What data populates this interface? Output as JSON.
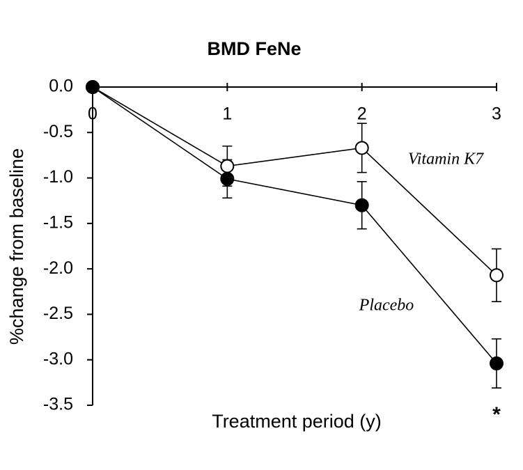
{
  "chart_data": {
    "type": "line",
    "title": "BMD FeNe",
    "x_label": "Treatment period (y)",
    "y_label": "%change from baseline",
    "x": [
      0,
      1,
      2,
      3
    ],
    "xlim": [
      0,
      3
    ],
    "xticks": [
      0,
      1,
      2,
      3
    ],
    "ylim": [
      -3.5,
      0
    ],
    "yticks": [
      {
        "value": 0,
        "label": "0.0"
      },
      -0.5,
      {
        "value": -1,
        "label": "-1.0"
      },
      -1.5,
      {
        "value": -2,
        "label": "-2.0"
      },
      -2.5,
      {
        "value": -3,
        "label": "-3.0"
      },
      -3.5
    ],
    "grid": false,
    "series": [
      {
        "name": "Vitamin K7",
        "color": "#000000",
        "marker_fill": "#ffffff",
        "values": [
          0,
          -0.87,
          -0.67,
          -2.07
        ],
        "errors": [
          0,
          0.22,
          0.27,
          0.29
        ]
      },
      {
        "name": "Placebo",
        "color": "#000000",
        "marker_fill": "#000000",
        "values": [
          0,
          -1.01,
          -1.3,
          -3.04
        ],
        "errors": [
          0,
          0.21,
          0.26,
          0.27
        ]
      }
    ],
    "annotations": [
      "*"
    ]
  }
}
